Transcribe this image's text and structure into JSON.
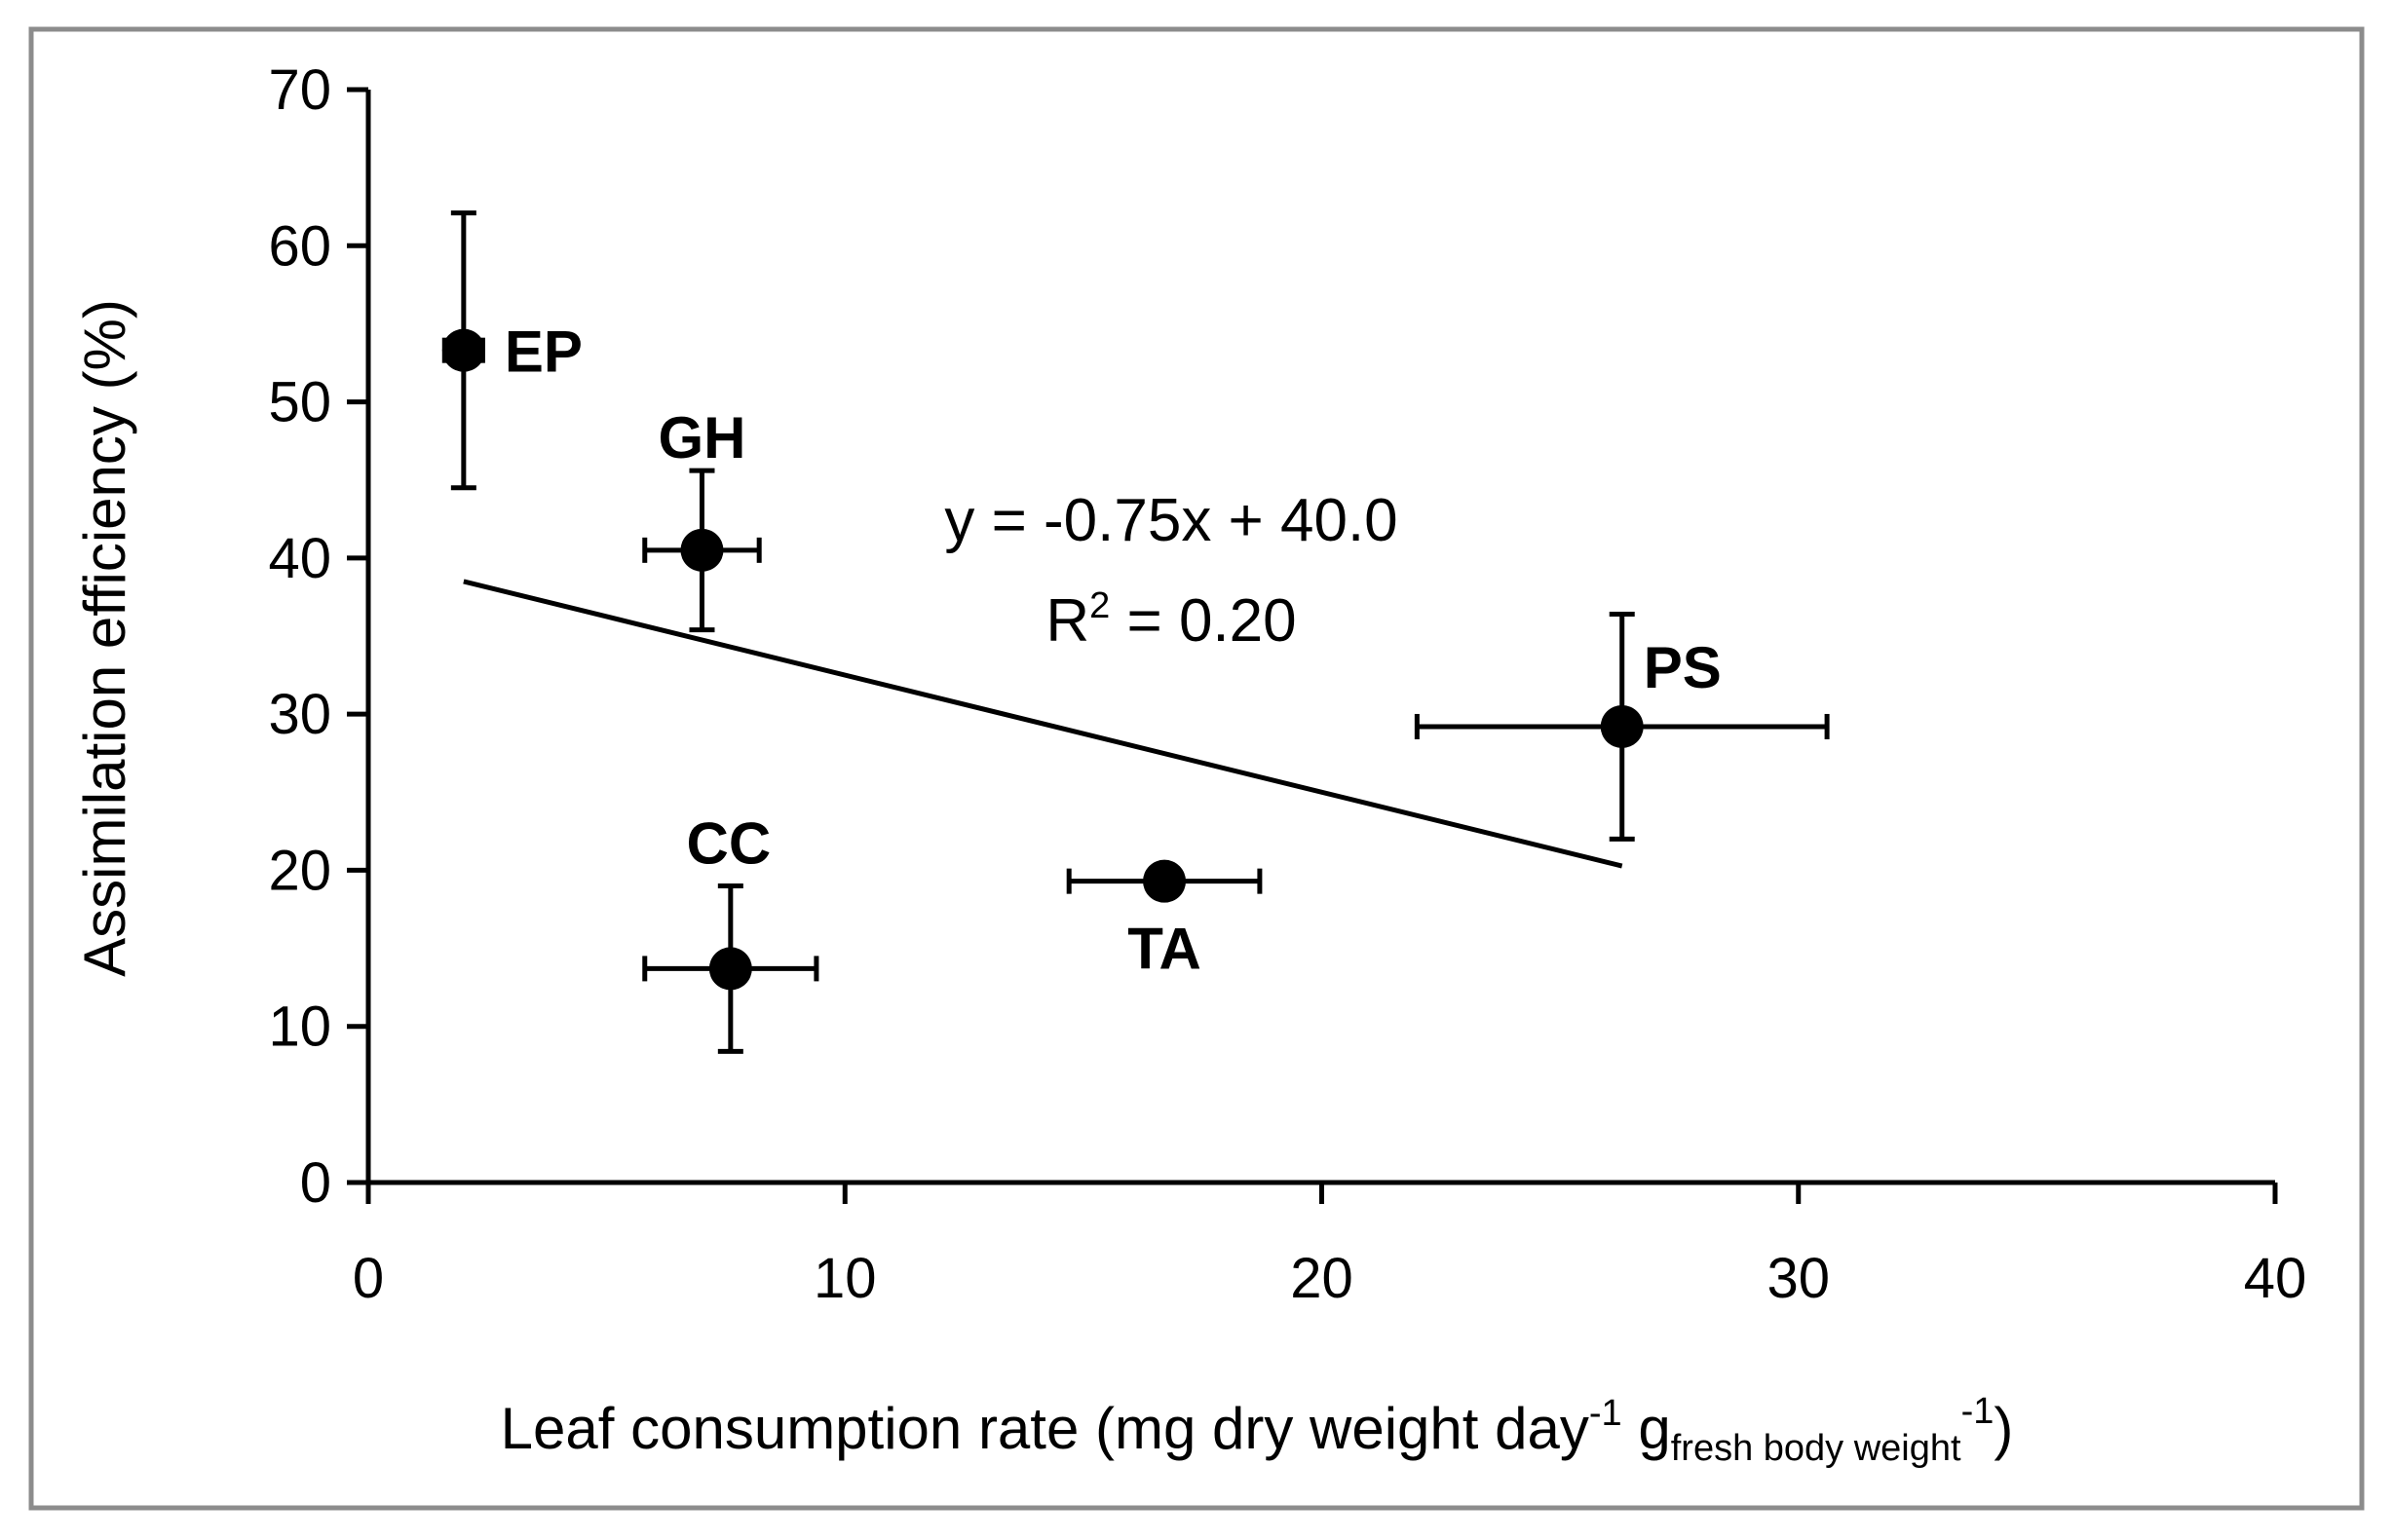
{
  "chart_data": {
    "type": "scatter",
    "title": "",
    "xlabel": {
      "main": "Leaf consumption rate (mg dry weight day",
      "sup1": "-1",
      "g": " g",
      "sub": "fresh body weight",
      "sup2": "-1",
      "close": ")"
    },
    "ylabel": "Assimilation efficiency (%)",
    "xlim": [
      0,
      40
    ],
    "ylim": [
      0,
      70
    ],
    "xticks": [
      "0",
      "10",
      "20",
      "30",
      "40"
    ],
    "yticks": [
      "0",
      "10",
      "20",
      "30",
      "40",
      "50",
      "60",
      "70"
    ],
    "grid": false,
    "legend": "none",
    "points": [
      {
        "label": "EP",
        "x": 2.0,
        "y": 53.3,
        "xerr": 0.4,
        "yerr": 8.8
      },
      {
        "label": "GH",
        "x": 7.0,
        "y": 40.5,
        "xerr": 1.2,
        "yerr": 5.1
      },
      {
        "label": "CC",
        "x": 7.6,
        "y": 13.7,
        "xerr": 1.8,
        "yerr": 5.3
      },
      {
        "label": "TA",
        "x": 16.7,
        "y": 19.3,
        "xerr": 2.0,
        "yerr": 0.7
      },
      {
        "label": "PS",
        "x": 26.3,
        "y": 29.2,
        "xerr": 4.3,
        "yerr": 7.2
      }
    ],
    "trendline": {
      "slope": -0.75,
      "intercept": 40.0,
      "x_start": 2.0,
      "x_end": 26.3
    },
    "annotations": {
      "equation": "y = -0.75x + 40.0",
      "r2_prefix": "R",
      "r2_sup": "2",
      "r2_value": " = 0.20"
    },
    "colors": {
      "marker": "#000000",
      "line": "#000000",
      "frame": "#8c8c8c"
    }
  }
}
